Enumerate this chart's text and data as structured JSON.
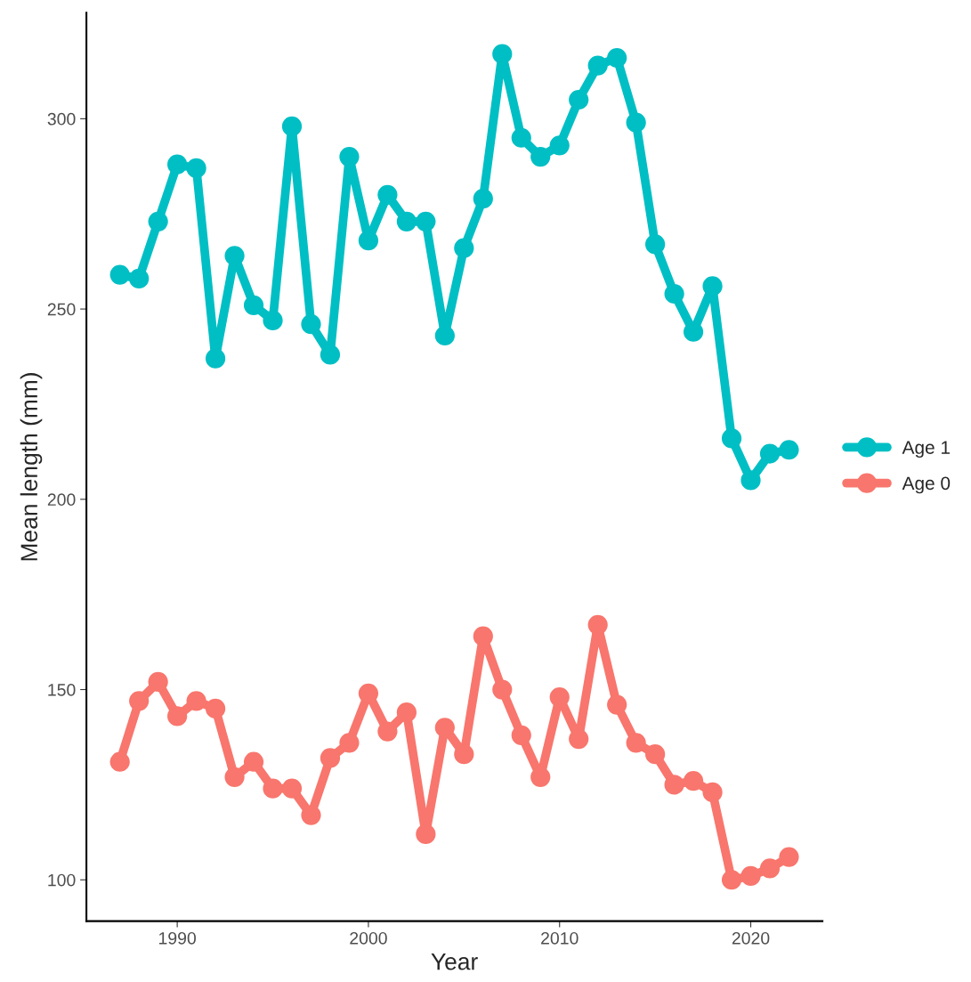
{
  "chart_data": {
    "type": "line",
    "xlabel": "Year",
    "ylabel": "Mean length (mm)",
    "x": [
      1987,
      1988,
      1989,
      1990,
      1991,
      1992,
      1993,
      1994,
      1995,
      1996,
      1997,
      1998,
      1999,
      2000,
      2001,
      2002,
      2003,
      2004,
      2005,
      2006,
      2007,
      2008,
      2009,
      2010,
      2011,
      2012,
      2013,
      2014,
      2015,
      2016,
      2017,
      2018,
      2019,
      2020,
      2021,
      2022
    ],
    "series": [
      {
        "name": "Age 1",
        "color": "#00bfc4",
        "values": [
          259,
          258,
          273,
          288,
          287,
          237,
          264,
          251,
          247,
          298,
          246,
          238,
          290,
          268,
          280,
          273,
          273,
          243,
          266,
          279,
          317,
          295,
          290,
          293,
          305,
          314,
          316,
          299,
          267,
          254,
          244,
          256,
          216,
          205,
          212,
          213
        ]
      },
      {
        "name": "Age 0",
        "color": "#f8766d",
        "values": [
          131,
          147,
          152,
          143,
          147,
          145,
          127,
          131,
          124,
          124,
          117,
          132,
          136,
          149,
          139,
          144,
          112,
          140,
          133,
          164,
          150,
          138,
          127,
          148,
          137,
          167,
          146,
          136,
          133,
          125,
          126,
          123,
          100,
          101,
          103,
          106
        ]
      }
    ],
    "xlim": [
      1985.25,
      2023.75
    ],
    "ylim": [
      89.15,
      327.85
    ],
    "xticks": [
      1990,
      2000,
      2010,
      2020
    ],
    "yticks": [
      100,
      150,
      200,
      250,
      300
    ],
    "grid": false,
    "legend": "right",
    "marker": "circle",
    "line_style": "solid"
  }
}
